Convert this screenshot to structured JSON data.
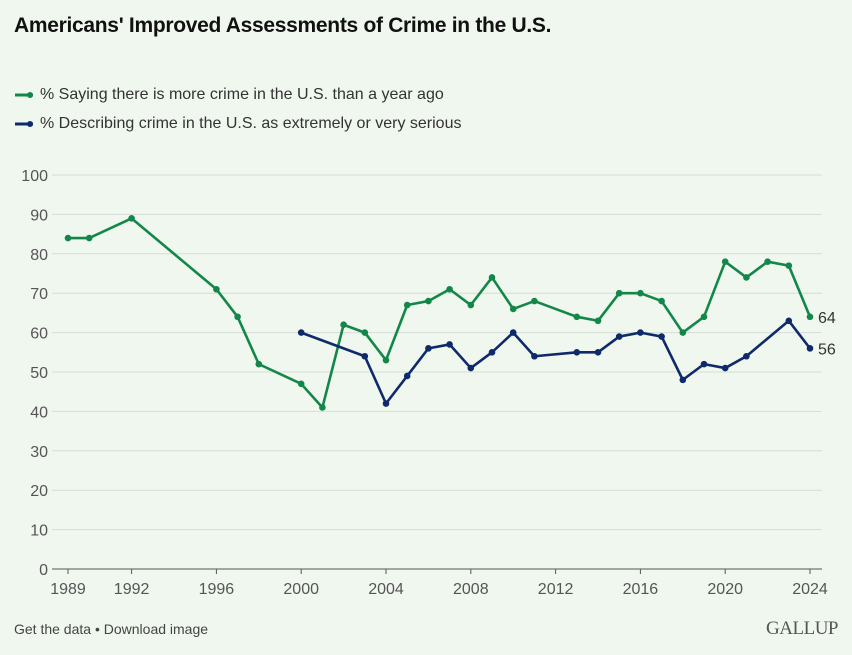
{
  "title": "Americans' Improved Assessments of Crime in the U.S.",
  "footer": {
    "get_data": "Get the data",
    "separator": " • ",
    "download": "Download image",
    "logo": "GALLUP"
  },
  "chart_data": {
    "type": "line",
    "title": "Americans' Improved Assessments of Crime in the U.S.",
    "xlabel": "",
    "ylabel": "",
    "xlim": [
      1989,
      2024
    ],
    "ylim": [
      0,
      100
    ],
    "x_ticks": [
      1989,
      1992,
      1996,
      2000,
      2004,
      2008,
      2012,
      2016,
      2020,
      2024
    ],
    "y_ticks": [
      0,
      10,
      20,
      30,
      40,
      50,
      60,
      70,
      80,
      90,
      100
    ],
    "grid": true,
    "legend_position": "top-left",
    "series": [
      {
        "name": "% Saying there is more crime in the U.S. than a year ago",
        "color": "#13874a",
        "x": [
          1989,
          1990,
          1992,
          1996,
          1997,
          1998,
          2000,
          2001,
          2002,
          2003,
          2004,
          2005,
          2006,
          2007,
          2008,
          2009,
          2010,
          2011,
          2013,
          2014,
          2015,
          2016,
          2017,
          2018,
          2019,
          2020,
          2021,
          2022,
          2023,
          2024
        ],
        "values": [
          84,
          84,
          89,
          71,
          64,
          52,
          47,
          41,
          62,
          60,
          53,
          67,
          68,
          71,
          67,
          74,
          66,
          68,
          64,
          63,
          70,
          70,
          68,
          60,
          64,
          78,
          74,
          78,
          77,
          64
        ],
        "end_label": "64"
      },
      {
        "name": "% Describing crime in the U.S. as extremely or very serious",
        "color": "#0f2a6b",
        "x": [
          2000,
          2003,
          2004,
          2005,
          2006,
          2007,
          2008,
          2009,
          2010,
          2011,
          2013,
          2014,
          2015,
          2016,
          2017,
          2018,
          2019,
          2020,
          2021,
          2023,
          2024
        ],
        "values": [
          60,
          54,
          42,
          49,
          56,
          57,
          51,
          55,
          60,
          54,
          55,
          55,
          59,
          60,
          59,
          48,
          52,
          51,
          54,
          63,
          56
        ],
        "end_label": "56"
      }
    ]
  }
}
